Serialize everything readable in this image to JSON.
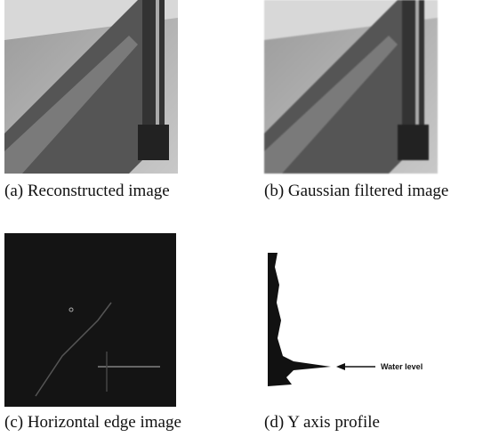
{
  "panels": [
    {
      "caption": "(a) Reconstructed image"
    },
    {
      "caption": "(b) Gaussian filtered image"
    },
    {
      "caption": "(c) Horizontal edge image"
    },
    {
      "caption": "(d) Y axis profile"
    }
  ],
  "annotation": "Water level"
}
